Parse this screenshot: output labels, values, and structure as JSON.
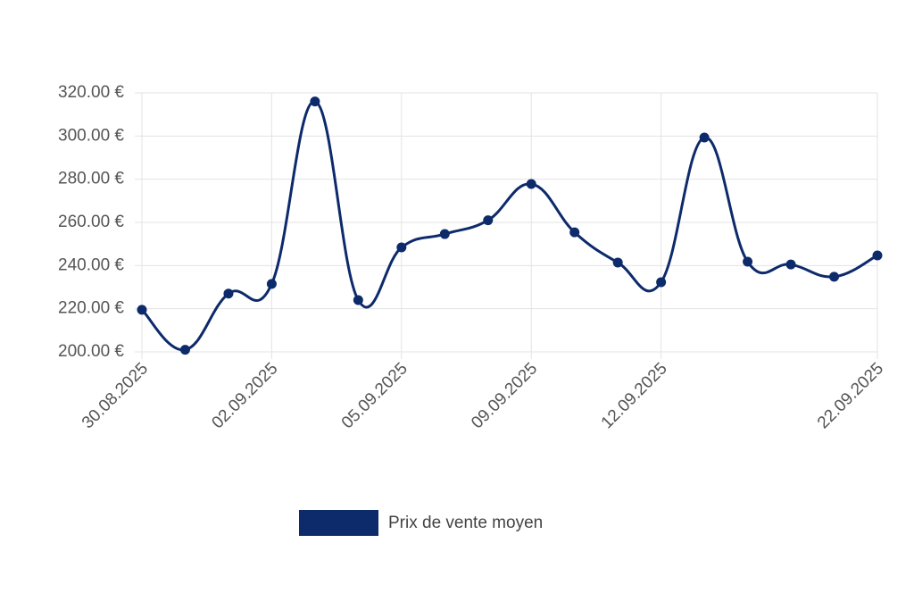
{
  "chart_data": {
    "type": "line",
    "categories": [
      "30.08.2025",
      null,
      null,
      "02.09.2025",
      null,
      null,
      "05.09.2025",
      null,
      null,
      "09.09.2025",
      null,
      null,
      "12.09.2025",
      null,
      null,
      null,
      null,
      "22.09.2025"
    ],
    "series": [
      {
        "name": "Prix de vente moyen",
        "color": "#0d2a6b",
        "values": [
          219.5,
          201,
          227,
          231.5,
          316,
          224,
          248.4,
          254.6,
          261,
          277.8,
          255.4,
          241.4,
          232.3,
          299.3,
          241.8,
          240.5,
          234.8,
          244.7
        ]
      }
    ],
    "ylim": [
      200,
      320
    ],
    "yticks": [
      {
        "value": 200,
        "label": "200.00 €"
      },
      {
        "value": 220,
        "label": "220.00 €"
      },
      {
        "value": 240,
        "label": "240.00 €"
      },
      {
        "value": 260,
        "label": "260.00 €"
      },
      {
        "value": 280,
        "label": "280.00 €"
      },
      {
        "value": 300,
        "label": "300.00 €"
      },
      {
        "value": 320,
        "label": "320.00 €"
      }
    ],
    "grid": true,
    "legend": "bottom"
  }
}
